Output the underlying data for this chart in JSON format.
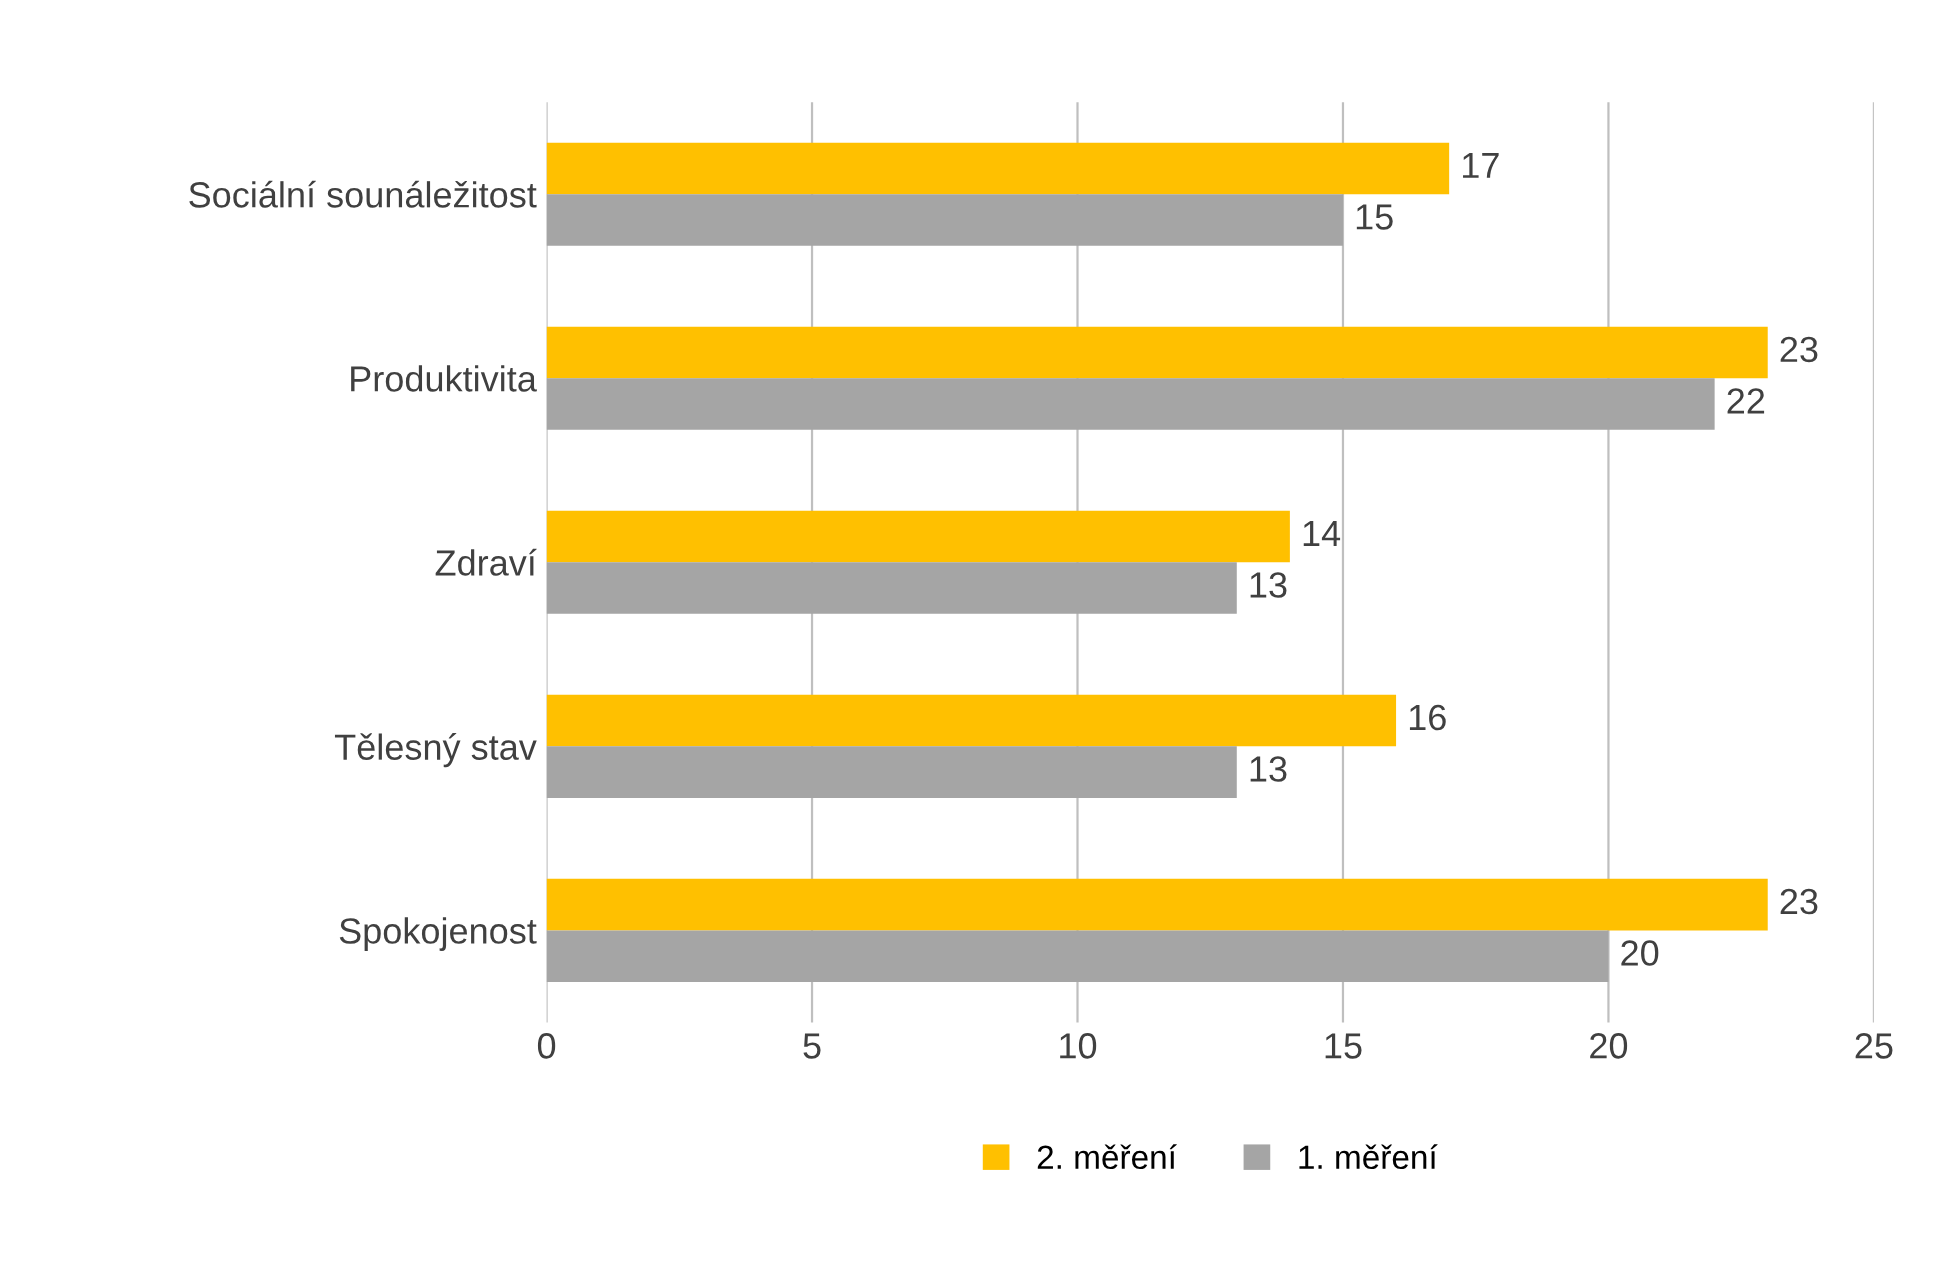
{
  "chart_data": {
    "type": "bar",
    "orientation": "horizontal",
    "categories": [
      "Sociální sounáležitost",
      "Produktivita",
      "Zdraví",
      "Tělesný stav",
      "Spokojenost"
    ],
    "series": [
      {
        "name": "2. měření",
        "color": "#ffc000",
        "values": [
          17,
          23,
          14,
          16,
          23
        ]
      },
      {
        "name": "1. měření",
        "color": "#a5a5a5",
        "values": [
          15,
          22,
          13,
          13,
          20
        ]
      }
    ],
    "xlim": [
      0,
      25
    ],
    "xticks": [
      0,
      5,
      10,
      15,
      20,
      25
    ],
    "grid": "x",
    "legend": "bottom",
    "data_labels": true
  }
}
